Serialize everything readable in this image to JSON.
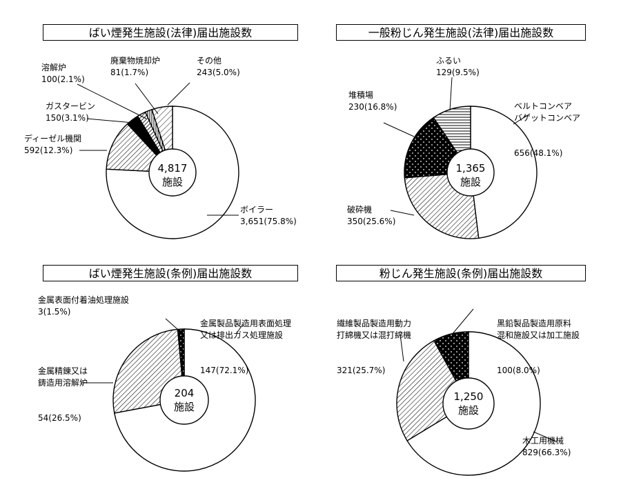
{
  "chart_data": [
    {
      "type": "pie",
      "title": "ばい煙発生施設(法律)届出施設数",
      "center_value": "4,817",
      "center_unit": "施設",
      "slices": [
        {
          "label": "ボイラー",
          "value": 3651,
          "pct": "75.8%",
          "display": "3,651(75.8%)",
          "pattern": "white"
        },
        {
          "label": "ディーゼル機関",
          "value": 592,
          "pct": "12.3%",
          "display": "592(12.3%)",
          "pattern": "diag-fine"
        },
        {
          "label": "ガスタービン",
          "value": 150,
          "pct": "3.1%",
          "display": "150(3.1%)",
          "pattern": "black"
        },
        {
          "label": "溶解炉",
          "value": 100,
          "pct": "2.1%",
          "display": "100(2.1%)",
          "pattern": "hatch-wide"
        },
        {
          "label": "廃棄物焼却炉",
          "value": 81,
          "pct": "1.7%",
          "display": "81(1.7%)",
          "pattern": "vertical"
        },
        {
          "label": "その他",
          "value": 243,
          "pct": "5.0%",
          "display": "243(5.0%)",
          "pattern": "diag-light"
        }
      ]
    },
    {
      "type": "pie",
      "title": "一般粉じん発生施設(法律)届出施設数",
      "center_value": "1,365",
      "center_unit": "施設",
      "slices": [
        {
          "label": "ベルトコンベア\nバケットコンベア",
          "value": 656,
          "pct": "48.1%",
          "display": "656(48.1%)",
          "pattern": "white"
        },
        {
          "label": "破砕機",
          "value": 350,
          "pct": "25.6%",
          "display": "350(25.6%)",
          "pattern": "diag-fine"
        },
        {
          "label": "堆積場",
          "value": 230,
          "pct": "16.8%",
          "display": "230(16.8%)",
          "pattern": "black-dots"
        },
        {
          "label": "ふるい",
          "value": 129,
          "pct": "9.5%",
          "display": "129(9.5%)",
          "pattern": "horizontal"
        }
      ]
    },
    {
      "type": "pie",
      "title": "ばい煙発生施設(条例)届出施設数",
      "center_value": "204",
      "center_unit": "施設",
      "slices": [
        {
          "label": "金属製品製造用表面処理\n又は排出ガス処理施設",
          "value": 147,
          "pct": "72.1%",
          "display": "147(72.1%)",
          "pattern": "white"
        },
        {
          "label": "金属精錬又は\n鋳造用溶解炉",
          "value": 54,
          "pct": "26.5%",
          "display": "54(26.5%)",
          "pattern": "diag-fine"
        },
        {
          "label": "金属表面付着油処理施設",
          "value": 3,
          "pct": "1.5%",
          "display": "3(1.5%)",
          "pattern": "black-dots"
        }
      ]
    },
    {
      "type": "pie",
      "title": "粉じん発生施設(条例)届出施設数",
      "center_value": "1,250",
      "center_unit": "施設",
      "slices": [
        {
          "label": "木工用機械",
          "value": 829,
          "pct": "66.3%",
          "display": "829(66.3%)",
          "pattern": "white"
        },
        {
          "label": "繊維製品製造用動力\n打綿機又は混打綿機",
          "value": 321,
          "pct": "25.7%",
          "display": "321(25.7%)",
          "pattern": "diag-fine"
        },
        {
          "label": "黒鉛製品製造用原料\n混和施設又は加工施設",
          "value": 100,
          "pct": "8.0%",
          "display": "100(8.0%)",
          "pattern": "black-dots"
        }
      ]
    }
  ]
}
